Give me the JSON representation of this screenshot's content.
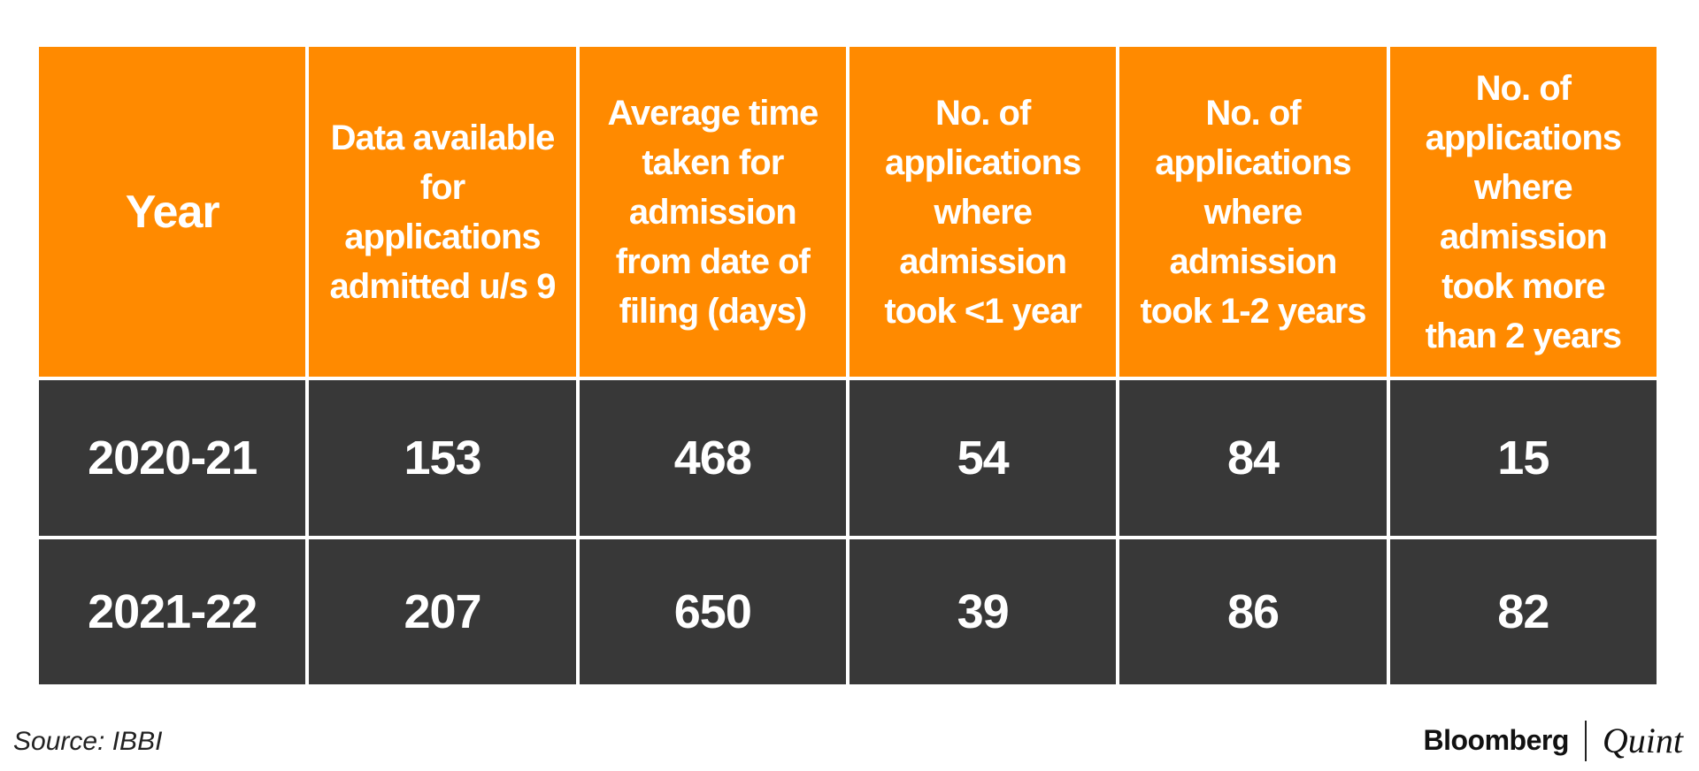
{
  "chart_data": {
    "type": "table",
    "columns": [
      "Year",
      "Data available for applications admitted u/s 9",
      "Average time taken for admission from date of filing (days)",
      "No. of applications where admission took <1 year",
      "No. of applications where admission took 1-2 years",
      "No. of applications where admission took more than 2 years"
    ],
    "rows": [
      [
        "2020-21",
        "153",
        "468",
        "54",
        "84",
        "15"
      ],
      [
        "2021-22",
        "207",
        "650",
        "39",
        "86",
        "82"
      ]
    ]
  },
  "colors": {
    "header_bg": "#ff8a00",
    "row_bg": "#383838",
    "text": "#ffffff"
  },
  "source": "Source: IBBI",
  "logo": {
    "brand": "Bloomberg",
    "sub": "Quint"
  }
}
